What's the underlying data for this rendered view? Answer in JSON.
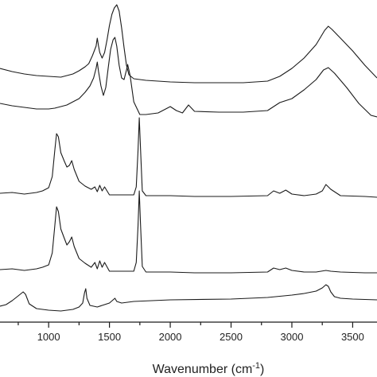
{
  "chart_data": {
    "type": "line",
    "xlabel": "Wavenumber (cm",
    "xlabel_sup": "-1",
    "xlabel_close": ")",
    "ylabel": "",
    "xlim": [
      600,
      3700
    ],
    "x_ticks": [
      1000,
      1500,
      2000,
      2500,
      3000,
      3500
    ],
    "x_tick_labels": [
      "1000",
      "1500",
      "2000",
      "2500",
      "3000",
      "3500"
    ],
    "grid": false,
    "legend": "none",
    "line_color": "#1a1a1a",
    "series": [
      {
        "points": [
          [
            600,
            86
          ],
          [
            700,
            90
          ],
          [
            800,
            93
          ],
          [
            900,
            95
          ],
          [
            1000,
            96
          ],
          [
            1100,
            97
          ],
          [
            1150,
            95
          ],
          [
            1200,
            93
          ],
          [
            1250,
            89
          ],
          [
            1300,
            84
          ],
          [
            1330,
            80
          ],
          [
            1360,
            70
          ],
          [
            1390,
            58
          ],
          [
            1400,
            48
          ],
          [
            1410,
            58
          ],
          [
            1420,
            66
          ],
          [
            1440,
            73
          ],
          [
            1460,
            66
          ],
          [
            1480,
            50
          ],
          [
            1500,
            32
          ],
          [
            1520,
            18
          ],
          [
            1540,
            10
          ],
          [
            1560,
            6
          ],
          [
            1580,
            14
          ],
          [
            1600,
            35
          ],
          [
            1620,
            60
          ],
          [
            1640,
            82
          ],
          [
            1660,
            94
          ],
          [
            1700,
            99
          ],
          [
            1800,
            101
          ],
          [
            2000,
            103
          ],
          [
            2200,
            104
          ],
          [
            2400,
            104
          ],
          [
            2600,
            104
          ],
          [
            2800,
            102
          ],
          [
            2900,
            96
          ],
          [
            3000,
            86
          ],
          [
            3100,
            73
          ],
          [
            3200,
            56
          ],
          [
            3270,
            38
          ],
          [
            3300,
            33
          ],
          [
            3330,
            37
          ],
          [
            3400,
            48
          ],
          [
            3500,
            64
          ],
          [
            3600,
            82
          ],
          [
            3700,
            98
          ]
        ]
      },
      {
        "points": [
          [
            600,
            130
          ],
          [
            700,
            133
          ],
          [
            800,
            135
          ],
          [
            900,
            137
          ],
          [
            1000,
            137
          ],
          [
            1050,
            136
          ],
          [
            1100,
            134
          ],
          [
            1150,
            132
          ],
          [
            1200,
            128
          ],
          [
            1250,
            124
          ],
          [
            1300,
            116
          ],
          [
            1340,
            108
          ],
          [
            1370,
            98
          ],
          [
            1390,
            86
          ],
          [
            1400,
            78
          ],
          [
            1410,
            90
          ],
          [
            1430,
            108
          ],
          [
            1450,
            120
          ],
          [
            1470,
            110
          ],
          [
            1490,
            85
          ],
          [
            1510,
            62
          ],
          [
            1530,
            50
          ],
          [
            1545,
            47
          ],
          [
            1560,
            58
          ],
          [
            1580,
            82
          ],
          [
            1600,
            98
          ],
          [
            1620,
            100
          ],
          [
            1640,
            88
          ],
          [
            1650,
            81
          ],
          [
            1670,
            95
          ],
          [
            1700,
            128
          ],
          [
            1750,
            144
          ],
          [
            1800,
            144
          ],
          [
            1900,
            142
          ],
          [
            2000,
            134
          ],
          [
            2050,
            139
          ],
          [
            2100,
            142
          ],
          [
            2150,
            132
          ],
          [
            2200,
            140
          ],
          [
            2400,
            141
          ],
          [
            2600,
            141
          ],
          [
            2800,
            139
          ],
          [
            2900,
            129
          ],
          [
            3000,
            124
          ],
          [
            3100,
            113
          ],
          [
            3200,
            100
          ],
          [
            3260,
            88
          ],
          [
            3300,
            85
          ],
          [
            3350,
            92
          ],
          [
            3450,
            110
          ],
          [
            3550,
            130
          ],
          [
            3650,
            145
          ],
          [
            3700,
            147
          ]
        ]
      },
      {
        "points": [
          [
            600,
            243
          ],
          [
            700,
            242
          ],
          [
            800,
            244
          ],
          [
            900,
            242
          ],
          [
            950,
            240
          ],
          [
            1000,
            236
          ],
          [
            1030,
            222
          ],
          [
            1050,
            190
          ],
          [
            1065,
            168
          ],
          [
            1080,
            172
          ],
          [
            1100,
            192
          ],
          [
            1130,
            203
          ],
          [
            1150,
            210
          ],
          [
            1170,
            208
          ],
          [
            1190,
            202
          ],
          [
            1210,
            213
          ],
          [
            1250,
            228
          ],
          [
            1300,
            234
          ],
          [
            1350,
            238
          ],
          [
            1380,
            235
          ],
          [
            1400,
            241
          ],
          [
            1420,
            233
          ],
          [
            1440,
            240
          ],
          [
            1460,
            235
          ],
          [
            1500,
            245
          ],
          [
            1600,
            245
          ],
          [
            1700,
            245
          ],
          [
            1720,
            235
          ],
          [
            1735,
            190
          ],
          [
            1745,
            148
          ],
          [
            1755,
            185
          ],
          [
            1770,
            240
          ],
          [
            1800,
            246
          ],
          [
            2000,
            246
          ],
          [
            2200,
            247
          ],
          [
            2500,
            247
          ],
          [
            2800,
            246
          ],
          [
            2850,
            240
          ],
          [
            2900,
            243
          ],
          [
            2950,
            239
          ],
          [
            3000,
            244
          ],
          [
            3100,
            246
          ],
          [
            3200,
            244
          ],
          [
            3250,
            240
          ],
          [
            3280,
            232
          ],
          [
            3320,
            238
          ],
          [
            3400,
            246
          ],
          [
            3600,
            247
          ],
          [
            3700,
            248
          ]
        ]
      },
      {
        "points": [
          [
            600,
            339
          ],
          [
            700,
            338
          ],
          [
            800,
            340
          ],
          [
            900,
            338
          ],
          [
            950,
            336
          ],
          [
            1000,
            333
          ],
          [
            1030,
            318
          ],
          [
            1050,
            285
          ],
          [
            1065,
            260
          ],
          [
            1080,
            266
          ],
          [
            1100,
            288
          ],
          [
            1130,
            300
          ],
          [
            1150,
            308
          ],
          [
            1170,
            304
          ],
          [
            1190,
            298
          ],
          [
            1210,
            310
          ],
          [
            1250,
            325
          ],
          [
            1300,
            331
          ],
          [
            1350,
            336
          ],
          [
            1380,
            330
          ],
          [
            1400,
            338
          ],
          [
            1420,
            328
          ],
          [
            1440,
            336
          ],
          [
            1460,
            330
          ],
          [
            1500,
            341
          ],
          [
            1600,
            341
          ],
          [
            1700,
            341
          ],
          [
            1720,
            330
          ],
          [
            1735,
            285
          ],
          [
            1745,
            240
          ],
          [
            1755,
            280
          ],
          [
            1770,
            335
          ],
          [
            1800,
            342
          ],
          [
            2000,
            342
          ],
          [
            2200,
            343
          ],
          [
            2500,
            343
          ],
          [
            2800,
            342
          ],
          [
            2850,
            337
          ],
          [
            2900,
            339
          ],
          [
            2950,
            337
          ],
          [
            3000,
            340
          ],
          [
            3100,
            342
          ],
          [
            3200,
            342
          ],
          [
            3280,
            340
          ],
          [
            3320,
            341
          ],
          [
            3400,
            342
          ],
          [
            3600,
            343
          ],
          [
            3700,
            343
          ]
        ]
      },
      {
        "points": [
          [
            600,
            385
          ],
          [
            650,
            383
          ],
          [
            700,
            378
          ],
          [
            750,
            372
          ],
          [
            790,
            367
          ],
          [
            810,
            370
          ],
          [
            840,
            382
          ],
          [
            900,
            388
          ],
          [
            1000,
            390
          ],
          [
            1100,
            391
          ],
          [
            1200,
            389
          ],
          [
            1250,
            386
          ],
          [
            1280,
            381
          ],
          [
            1295,
            368
          ],
          [
            1305,
            363
          ],
          [
            1315,
            375
          ],
          [
            1340,
            384
          ],
          [
            1400,
            386
          ],
          [
            1500,
            381
          ],
          [
            1545,
            375
          ],
          [
            1560,
            379
          ],
          [
            1600,
            381
          ],
          [
            1650,
            380
          ],
          [
            1700,
            379
          ],
          [
            2000,
            377
          ],
          [
            2500,
            376
          ],
          [
            2800,
            374
          ],
          [
            3000,
            371
          ],
          [
            3100,
            369
          ],
          [
            3200,
            366
          ],
          [
            3250,
            362
          ],
          [
            3280,
            358
          ],
          [
            3300,
            360
          ],
          [
            3320,
            367
          ],
          [
            3350,
            373
          ],
          [
            3400,
            375
          ],
          [
            3500,
            376
          ],
          [
            3700,
            377
          ]
        ]
      }
    ]
  }
}
